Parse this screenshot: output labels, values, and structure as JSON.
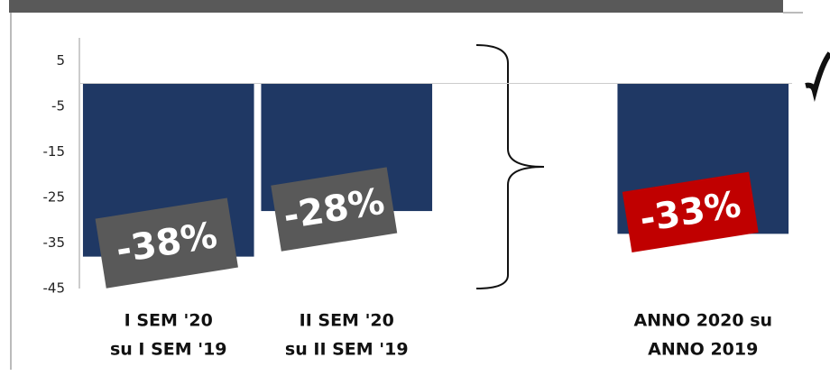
{
  "chart_data": {
    "type": "bar",
    "categories": [
      [
        "I SEM '20",
        "su I SEM '19"
      ],
      [
        "II SEM '20",
        "su II SEM '19"
      ],
      null,
      [
        "ANNO 2020 su",
        "ANNO 2019"
      ]
    ],
    "values": [
      -38,
      -28,
      null,
      -33
    ],
    "value_labels": [
      "-38%",
      "-28%",
      null,
      "-33%"
    ],
    "color": "#1f3864",
    "label_colors": [
      "#595959",
      "#595959",
      null,
      "#c00000"
    ],
    "ylim": [
      -45,
      10
    ],
    "yticks": [
      5,
      -5,
      -15,
      -25,
      -35,
      -45
    ]
  }
}
